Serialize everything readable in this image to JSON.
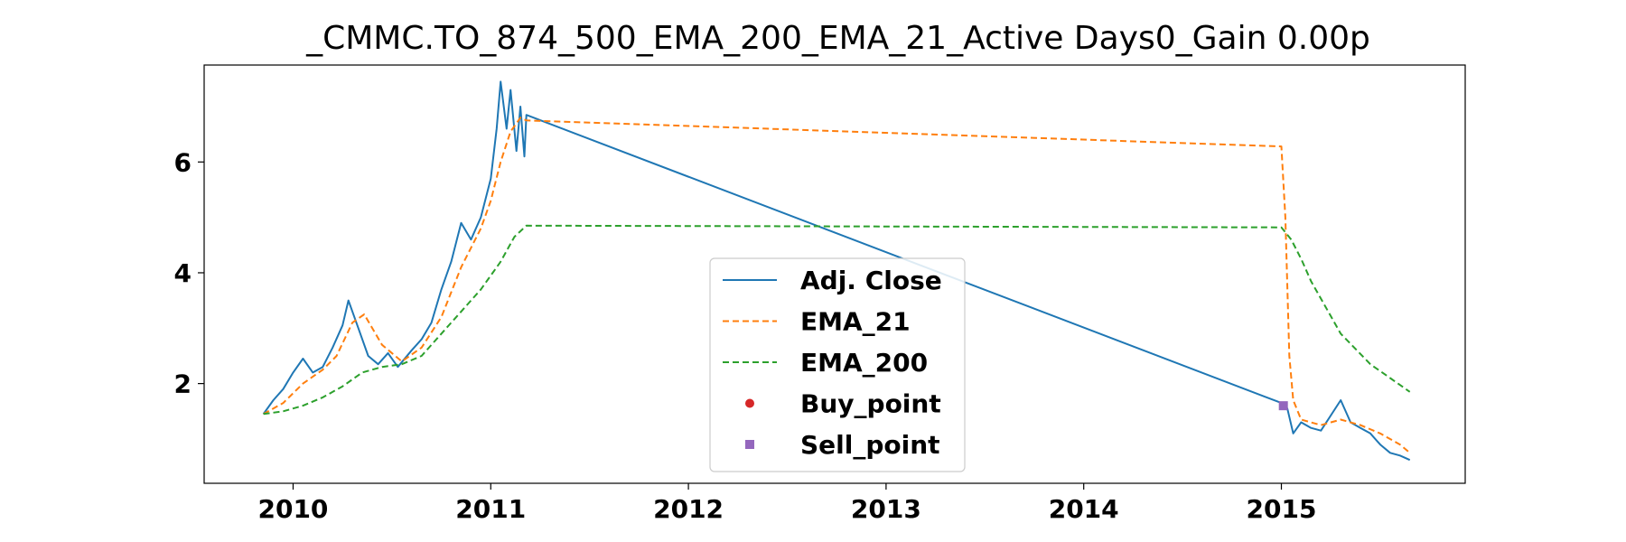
{
  "chart_data": {
    "type": "line",
    "title": "_CMMC.TO_874_500_EMA_200_EMA_21_Active Days0_Gain   0.00p",
    "xlabel": "",
    "ylabel": "",
    "x_range": [
      2009.55,
      2015.93
    ],
    "y_range": [
      0.2,
      7.75
    ],
    "xticks": [
      2010,
      2011,
      2012,
      2013,
      2014,
      2015
    ],
    "xtick_labels": [
      "2010",
      "2011",
      "2012",
      "2013",
      "2014",
      "2015"
    ],
    "yticks": [
      2,
      4,
      6
    ],
    "ytick_labels": [
      "2",
      "4",
      "6"
    ],
    "grid": false,
    "legend_position": "lower center",
    "series": [
      {
        "name": "Adj. Close",
        "color": "#1f77b4",
        "style": "solid",
        "x": [
          2009.85,
          2009.9,
          2009.95,
          2010.0,
          2010.05,
          2010.1,
          2010.15,
          2010.2,
          2010.25,
          2010.28,
          2010.33,
          2010.38,
          2010.43,
          2010.48,
          2010.53,
          2010.6,
          2010.65,
          2010.7,
          2010.75,
          2010.8,
          2010.85,
          2010.9,
          2010.95,
          2011.0,
          2011.03,
          2011.05,
          2011.08,
          2011.1,
          2011.13,
          2011.15,
          2011.17,
          2011.18,
          2015.0,
          2015.03,
          2015.06,
          2015.1,
          2015.15,
          2015.2,
          2015.3,
          2015.35,
          2015.4,
          2015.45,
          2015.5,
          2015.55,
          2015.6,
          2015.65
        ],
        "values": [
          1.45,
          1.7,
          1.9,
          2.2,
          2.45,
          2.2,
          2.3,
          2.65,
          3.05,
          3.5,
          3.0,
          2.5,
          2.35,
          2.55,
          2.3,
          2.6,
          2.8,
          3.1,
          3.7,
          4.2,
          4.9,
          4.6,
          5.0,
          5.7,
          6.6,
          7.45,
          6.6,
          7.3,
          6.2,
          7.0,
          6.1,
          6.85,
          1.65,
          1.55,
          1.1,
          1.3,
          1.2,
          1.15,
          1.7,
          1.3,
          1.2,
          1.1,
          0.9,
          0.75,
          0.7,
          0.62
        ]
      },
      {
        "name": "EMA_21",
        "color": "#ff7f0e",
        "style": "dashed",
        "x": [
          2009.85,
          2009.95,
          2010.05,
          2010.15,
          2010.22,
          2010.3,
          2010.36,
          2010.45,
          2010.55,
          2010.65,
          2010.75,
          2010.85,
          2010.95,
          2011.0,
          2011.05,
          2011.1,
          2011.15,
          2011.18,
          2015.0,
          2015.02,
          2015.04,
          2015.06,
          2015.1,
          2015.2,
          2015.3,
          2015.4,
          2015.5,
          2015.6,
          2015.65
        ],
        "values": [
          1.45,
          1.65,
          2.0,
          2.25,
          2.5,
          3.1,
          3.25,
          2.7,
          2.4,
          2.65,
          3.2,
          4.1,
          4.8,
          5.3,
          6.0,
          6.55,
          6.8,
          6.75,
          6.28,
          5.0,
          2.5,
          1.7,
          1.35,
          1.25,
          1.35,
          1.25,
          1.1,
          0.9,
          0.75
        ]
      },
      {
        "name": "EMA_200",
        "color": "#2ca02c",
        "style": "dashed",
        "x": [
          2009.85,
          2009.95,
          2010.05,
          2010.15,
          2010.25,
          2010.35,
          2010.45,
          2010.55,
          2010.65,
          2010.75,
          2010.85,
          2010.95,
          2011.05,
          2011.12,
          2011.18,
          2015.0,
          2015.05,
          2015.1,
          2015.15,
          2015.3,
          2015.45,
          2015.55,
          2015.65
        ],
        "values": [
          1.45,
          1.5,
          1.6,
          1.75,
          1.95,
          2.2,
          2.3,
          2.35,
          2.5,
          2.9,
          3.3,
          3.7,
          4.2,
          4.65,
          4.85,
          4.82,
          4.6,
          4.25,
          3.85,
          2.9,
          2.35,
          2.1,
          1.85
        ]
      }
    ],
    "points": [
      {
        "name": "Buy_point",
        "color": "#d62728",
        "marker": "circle",
        "x": [],
        "values": []
      },
      {
        "name": "Sell_point",
        "color": "#9467bd",
        "marker": "square",
        "x": [
          2015.01
        ],
        "values": [
          1.6
        ]
      }
    ],
    "legend": [
      "Adj. Close",
      "EMA_21",
      "EMA_200",
      "Buy_point",
      "Sell_point"
    ]
  }
}
